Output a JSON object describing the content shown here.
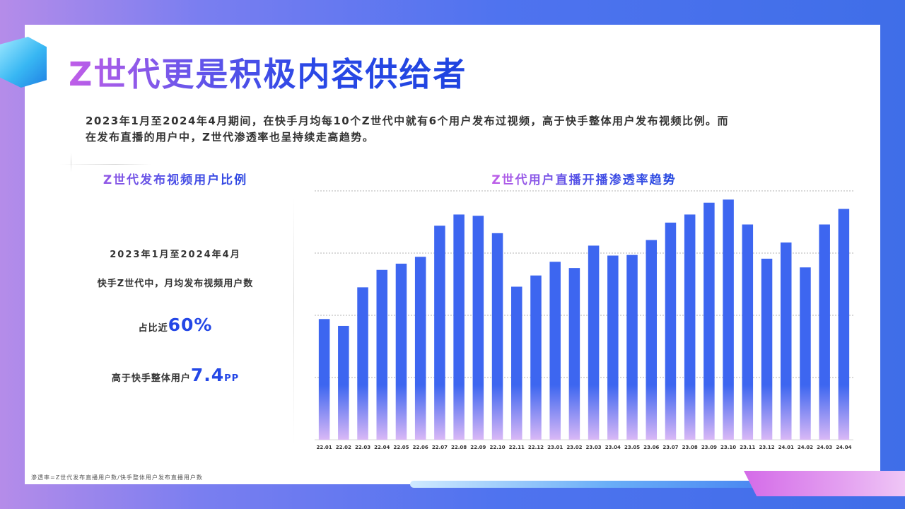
{
  "page": {
    "title": "Z世代更是积极内容供给者",
    "intro_line1": "2023年1月至2024年4月期间，在快手月均每10个Z世代中就有6个用户发布过视频，高于快手整体用户发布视频比例。而",
    "intro_line2": "在发布直播的用户中，Z世代渗透率也呈持续走高趋势。",
    "footnote": "渗透率=Z世代发布直播用户数/快手整体用户发布直播用户数"
  },
  "left_panel": {
    "title": "Z世代发布视频用户比例",
    "period": "2023年1月至2024年4月",
    "desc": "快手Z世代中，月均发布视频用户数",
    "share_prefix": "占比近",
    "share_value": "60%",
    "diff_prefix": "高于快手整体用户",
    "diff_value": "7.4",
    "diff_unit": "PP"
  },
  "colors": {
    "bar_top": "#3d66f0",
    "bar_bottom": "#d9b8f6",
    "grid": "#9a9a9a",
    "accent": "#2447e6"
  },
  "chart_data": {
    "type": "bar",
    "title": "Z世代用户直播开播渗透率趋势",
    "categories": [
      "22.01",
      "22.02",
      "22.03",
      "22.04",
      "22.05",
      "22.06",
      "22.07",
      "22.08",
      "22.09",
      "22.10",
      "22.11",
      "22.12",
      "23.01",
      "23.02",
      "23.03",
      "23.04",
      "23.05",
      "23.06",
      "23.07",
      "23.08",
      "23.09",
      "23.10",
      "23.11",
      "23.12",
      "24.01",
      "24.02",
      "24.03",
      "24.04"
    ],
    "values": [
      1.94,
      1.83,
      2.45,
      2.73,
      2.83,
      2.94,
      3.44,
      3.62,
      3.6,
      3.32,
      2.46,
      2.64,
      2.86,
      2.76,
      3.12,
      2.96,
      2.97,
      3.21,
      3.49,
      3.62,
      3.81,
      3.86,
      3.46,
      2.91,
      3.17,
      2.77,
      3.46,
      3.71
    ],
    "ylim": [
      0,
      4
    ],
    "gridlines": [
      1,
      2,
      3,
      4
    ],
    "y_axis_labels_shown": false,
    "legend": "none"
  }
}
